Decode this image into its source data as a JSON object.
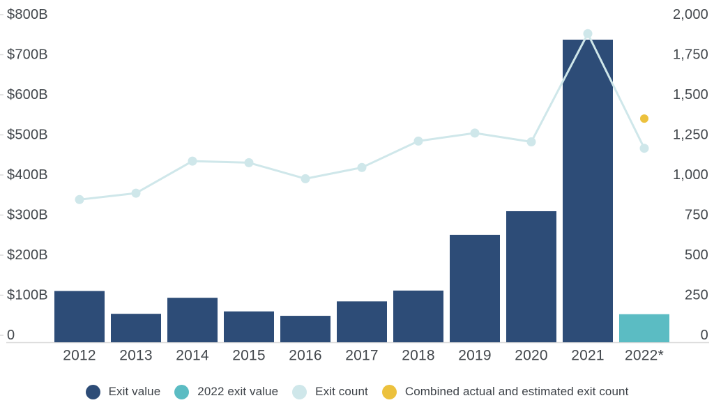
{
  "colors": {
    "navy": "#2d4c77",
    "teal": "#5bbcc3",
    "light_blue": "#cfe7ea",
    "yellow": "#ecc13d",
    "axis_text": "#41464b",
    "axis_line": "#d9d9d9"
  },
  "legend": {
    "items": [
      {
        "label": "Exit value",
        "color_key": "navy"
      },
      {
        "label": "2022 exit value",
        "color_key": "teal"
      },
      {
        "label": "Exit count",
        "color_key": "light_blue"
      },
      {
        "label": "Combined actual and estimated exit count",
        "color_key": "yellow"
      }
    ]
  },
  "chart_data": {
    "type": "combo_bar_line",
    "title": "",
    "categories": [
      "2012",
      "2013",
      "2014",
      "2015",
      "2016",
      "2017",
      "2018",
      "2019",
      "2020",
      "2021",
      "2022*"
    ],
    "series": [
      {
        "name": "Exit value",
        "kind": "bar",
        "axis": "left",
        "color_key": "navy",
        "values": [
          128,
          71,
          111,
          77,
          66,
          102,
          129,
          268,
          327,
          755,
          null
        ]
      },
      {
        "name": "2022 exit value",
        "kind": "bar",
        "axis": "left",
        "color_key": "teal",
        "values": [
          null,
          null,
          null,
          null,
          null,
          null,
          null,
          null,
          null,
          null,
          70
        ]
      },
      {
        "name": "Exit count",
        "kind": "line",
        "axis": "right",
        "color_key": "light_blue",
        "values": [
          890,
          930,
          1130,
          1120,
          1020,
          1090,
          1255,
          1305,
          1250,
          1925,
          1210
        ]
      },
      {
        "name": "Combined actual and estimated exit count",
        "kind": "point",
        "axis": "right",
        "color_key": "yellow",
        "values": [
          null,
          null,
          null,
          null,
          null,
          null,
          null,
          null,
          null,
          null,
          1395
        ]
      }
    ],
    "left_axis": {
      "range": [
        0,
        800
      ],
      "tick_values": [
        800,
        700,
        600,
        500,
        400,
        300,
        200,
        100,
        0
      ],
      "tick_labels": [
        "$800B",
        "$700B",
        "$600B",
        "$500B",
        "$400B",
        "$300B",
        "$200B",
        "$100B",
        "0"
      ]
    },
    "right_axis": {
      "range": [
        0,
        2000
      ],
      "tick_values": [
        2000,
        1750,
        1500,
        1250,
        1000,
        750,
        500,
        250,
        0
      ],
      "tick_labels": [
        "2,000",
        "1,750",
        "1,500",
        "1,250",
        "1,000",
        "750",
        "500",
        "250",
        "0"
      ]
    },
    "grid": false,
    "legend_position": "bottom"
  }
}
